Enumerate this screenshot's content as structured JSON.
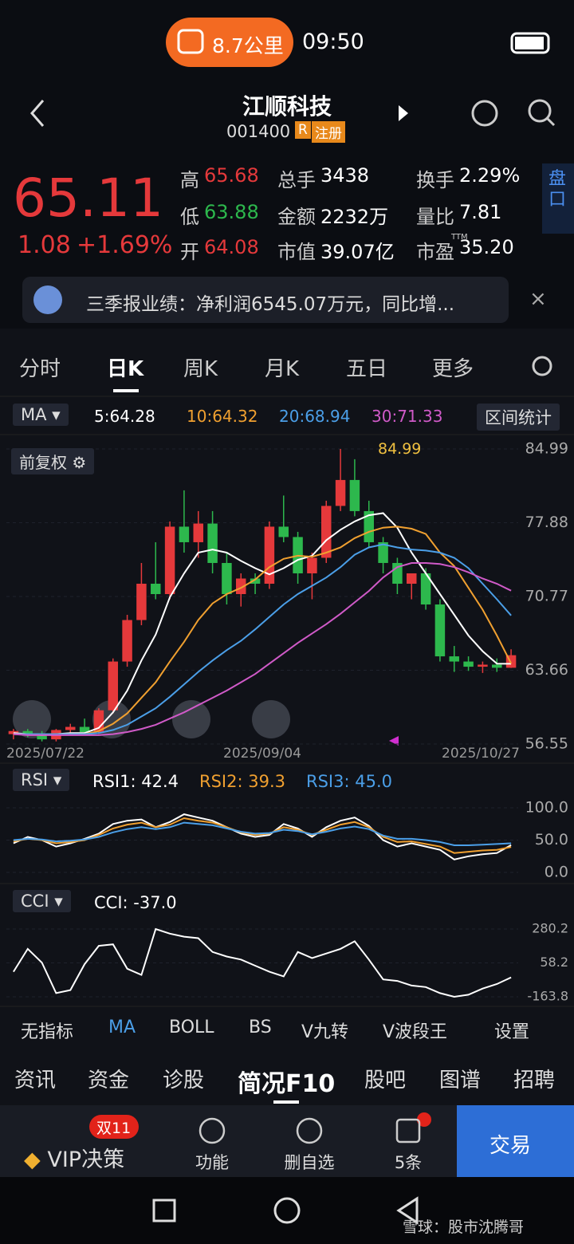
{
  "status": {
    "pill": "8.7公里",
    "time": "09:50"
  },
  "header": {
    "title": "江顺科技",
    "code": "001400",
    "badge_r": "R",
    "badge_reg": "注册"
  },
  "quote": {
    "price": "65.11",
    "change": "1.08",
    "change_pct": "+1.69%",
    "stats": [
      {
        "label": "高",
        "value": "65.68",
        "color": "#e5393b"
      },
      {
        "label": "低",
        "value": "63.88",
        "color": "#2db84d"
      },
      {
        "label": "开",
        "value": "64.08",
        "color": "#e5393b"
      },
      {
        "label": "总手",
        "value": "3438",
        "color": "#ffffff"
      },
      {
        "label": "金额",
        "value": "2232万",
        "color": "#ffffff"
      },
      {
        "label": "市值",
        "value": "39.07亿",
        "color": "#ffffff"
      },
      {
        "label": "换手",
        "value": "2.29%",
        "color": "#ffffff"
      },
      {
        "label": "量比",
        "value": "7.81",
        "color": "#ffffff"
      },
      {
        "label": "市盈",
        "value": "35.20",
        "color": "#ffffff",
        "sup": "TTM"
      }
    ]
  },
  "side_button": "盘口",
  "news": "三季报业绩：净利润6545.07万元，同比增...",
  "tabs": [
    "分时",
    "日K",
    "周K",
    "月K",
    "五日",
    "更多"
  ],
  "ma_bar": {
    "selector": "MA",
    "items": [
      {
        "text": "5:64.28",
        "color": "#ffffff"
      },
      {
        "text": "10:64.32",
        "color": "#f0a030"
      },
      {
        "text": "20:68.94",
        "color": "#4b9fe8"
      },
      {
        "text": "30:71.33",
        "color": "#d05ac8"
      }
    ],
    "button": "区间统计"
  },
  "kline": {
    "adjust": "前复权",
    "max_label": "84.99",
    "dates": [
      "2025/07/22",
      "2025/09/04",
      "2025/10/27"
    ],
    "ylim": [
      56.55,
      84.99
    ],
    "yticks": [
      84.99,
      77.88,
      70.77,
      63.66,
      56.55
    ],
    "up_color": "#e5393b",
    "down_color": "#2db84d",
    "open": [
      57.5,
      57.8,
      57.4,
      57,
      57.9,
      58.2,
      57.7,
      59.8,
      64.5,
      68.5,
      72,
      71,
      77.5,
      76,
      77.8,
      74,
      71,
      72.5,
      72,
      77.5,
      76.5,
      73,
      74.5,
      79.5,
      82,
      79,
      76,
      74,
      72,
      73,
      70,
      65,
      64.5,
      64,
      64.2,
      63.9
    ],
    "high": [
      58,
      58,
      57.8,
      58,
      58.5,
      59,
      60,
      64.8,
      69,
      74,
      76,
      78,
      81,
      79,
      79,
      75,
      73,
      73,
      78,
      80.5,
      77,
      75,
      80,
      84.99,
      84,
      80,
      76.5,
      74.5,
      73,
      73.5,
      70.5,
      66,
      65,
      64.5,
      64.8,
      65.68
    ],
    "low": [
      57,
      57.2,
      56.8,
      56.8,
      57.5,
      57.6,
      57.5,
      59.5,
      64,
      68,
      70.5,
      70.5,
      75,
      74.5,
      73,
      70,
      69.8,
      71,
      71.5,
      76,
      72,
      70.5,
      74,
      79,
      78.5,
      75.5,
      73,
      71,
      70.5,
      69.5,
      64.5,
      63.5,
      63.6,
      63.4,
      63.5,
      63.88
    ],
    "close": [
      57.8,
      57.4,
      57,
      57.9,
      58.2,
      57.7,
      59.8,
      64.5,
      68.5,
      72,
      71,
      77.5,
      76,
      77.8,
      74,
      71,
      72.5,
      72,
      77.5,
      76.5,
      73,
      74.5,
      79.5,
      82,
      79,
      76,
      74,
      72,
      73,
      70,
      65,
      64.5,
      64,
      64.2,
      63.9,
      65.11
    ],
    "ma": [
      {
        "color": "#ffffff",
        "values": [
          57.6,
          57.5,
          57.4,
          57.5,
          57.6,
          57.6,
          58.1,
          59.6,
          61.7,
          64.6,
          67.1,
          70.7,
          73,
          75,
          75.3,
          75,
          74.2,
          73.5,
          72.9,
          73.5,
          74.3,
          74.7,
          76.2,
          77.2,
          78,
          78.6,
          78.8,
          77.4,
          75,
          73,
          71,
          69,
          67,
          65.5,
          64.3,
          64.28
        ]
      },
      {
        "color": "#f0a030",
        "values": [
          57.5,
          57.5,
          57.5,
          57.5,
          57.5,
          57.5,
          57.8,
          58.5,
          59.5,
          61,
          62.5,
          64.5,
          66.4,
          68.5,
          70.1,
          71,
          71.6,
          72.4,
          73.6,
          74.4,
          74.7,
          74.6,
          75,
          75.5,
          76.4,
          77,
          77.4,
          77.5,
          77.3,
          76.8,
          75,
          73.7,
          71.6,
          69.5,
          67,
          64.32
        ]
      },
      {
        "color": "#4b9fe8",
        "values": [
          57.5,
          57.5,
          57.5,
          57.5,
          57.5,
          57.5,
          57.6,
          57.9,
          58.4,
          59.2,
          60,
          61.1,
          62.3,
          63.5,
          64.6,
          65.6,
          66.5,
          67.6,
          68.8,
          70,
          71,
          71.8,
          72.6,
          73.6,
          74.8,
          75.5,
          75.8,
          75.5,
          75.3,
          75.2,
          75,
          74.5,
          73.5,
          72,
          70.5,
          68.94
        ]
      },
      {
        "color": "#d05ac8",
        "values": [
          57.5,
          57.4,
          57.4,
          57.4,
          57.4,
          57.4,
          57.4,
          57.5,
          57.7,
          58,
          58.4,
          59,
          59.6,
          60.3,
          61,
          61.7,
          62.5,
          63.3,
          64.3,
          65.3,
          66.3,
          67.2,
          68.1,
          69.1,
          70.2,
          71.3,
          72.6,
          73.6,
          74,
          74,
          73.9,
          73.6,
          73.1,
          72.5,
          72,
          71.33
        ]
      }
    ]
  },
  "rsi": {
    "selector": "RSI",
    "ylim": [
      0,
      100
    ],
    "yticks": [
      {
        "value": 100,
        "label": "100.0"
      },
      {
        "value": 50,
        "label": "50.0"
      },
      {
        "value": 0,
        "label": "0.0"
      }
    ],
    "series": [
      {
        "label": "RSI1: 42.4",
        "color": "#ffffff",
        "values": [
          45,
          55,
          50,
          40,
          45,
          52,
          60,
          75,
          80,
          82,
          70,
          78,
          90,
          85,
          80,
          70,
          60,
          55,
          58,
          75,
          68,
          55,
          70,
          80,
          85,
          72,
          50,
          40,
          45,
          40,
          35,
          20,
          25,
          28,
          30,
          42.4
        ]
      },
      {
        "label": "RSI2: 39.3",
        "color": "#f0a030",
        "values": [
          48,
          52,
          50,
          45,
          47,
          50,
          58,
          68,
          74,
          77,
          70,
          74,
          84,
          80,
          77,
          70,
          62,
          58,
          60,
          70,
          66,
          58,
          66,
          74,
          78,
          70,
          55,
          47,
          48,
          44,
          40,
          30,
          32,
          34,
          35,
          39.3
        ]
      },
      {
        "label": "RSI3: 45.0",
        "color": "#4b9fe8",
        "values": [
          50,
          52,
          51,
          48,
          49,
          51,
          55,
          62,
          67,
          70,
          67,
          70,
          77,
          75,
          73,
          68,
          63,
          60,
          61,
          66,
          64,
          59,
          63,
          68,
          71,
          67,
          57,
          52,
          52,
          50,
          47,
          42,
          42,
          43,
          44,
          45.0
        ]
      }
    ]
  },
  "cci": {
    "selector": "CCI",
    "label": "CCI: -37.0",
    "color": "#ffffff",
    "ylim": [
      -163.8,
      280.2
    ],
    "yticks": [
      280.2,
      58.2,
      -163.8
    ],
    "values": [
      0,
      150,
      60,
      -140,
      -120,
      50,
      170,
      180,
      20,
      -20,
      280,
      250,
      230,
      220,
      130,
      100,
      80,
      40,
      0,
      -30,
      130,
      90,
      120,
      150,
      200,
      80,
      -50,
      -60,
      -90,
      -100,
      -140,
      -163.8,
      -150,
      -110,
      -80,
      -37.0
    ]
  },
  "indicators": [
    "无指标",
    "MA",
    "BOLL",
    "BS",
    "V九转",
    "V波段王",
    "设置"
  ],
  "bottom_tabs": [
    "资讯",
    "资金",
    "诊股",
    "简况F10",
    "股吧",
    "图谱",
    "招聘"
  ],
  "bottom_nav": {
    "badge": "双11",
    "vip": "VIP决策",
    "items": [
      "功能",
      "删自选",
      "5条"
    ],
    "trade": "交易"
  },
  "watermark": "雪球：股市沈腾哥"
}
